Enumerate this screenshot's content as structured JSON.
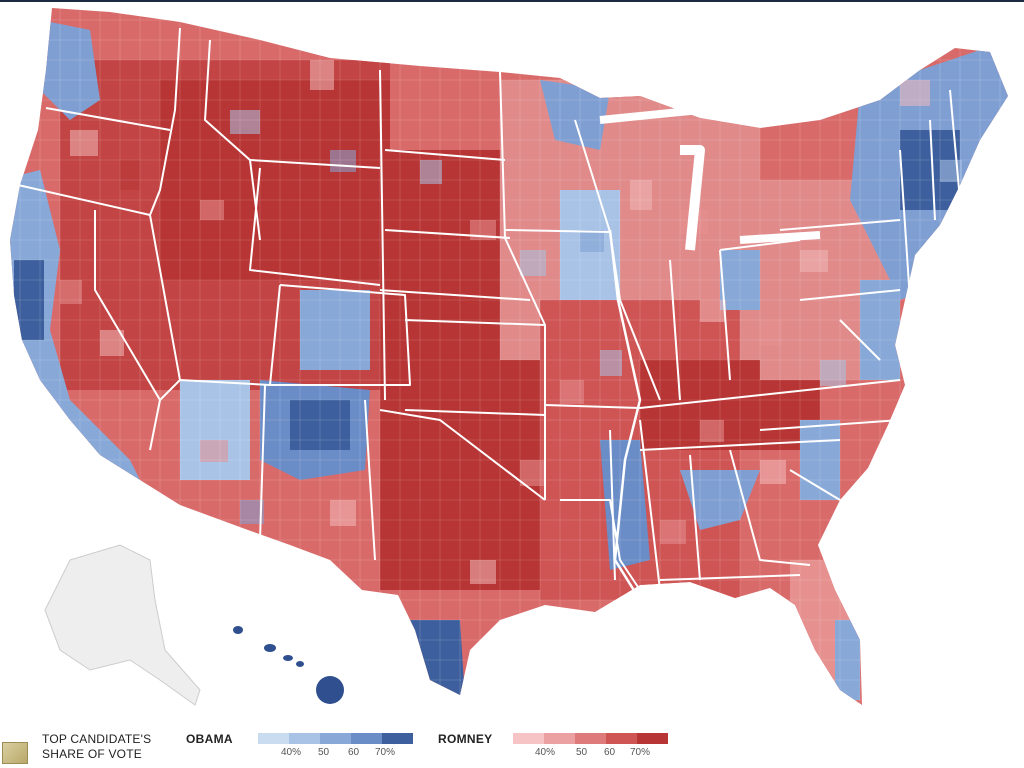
{
  "legend": {
    "title_line1": "TOP CANDIDATE'S",
    "title_line2": "SHARE OF VOTE",
    "obama": {
      "label": "OBAMA",
      "colors": [
        "#c9dcf0",
        "#a9c3e6",
        "#88a8d8",
        "#6a8cc7",
        "#3e5f9e"
      ],
      "ticks": [
        "40%",
        "50",
        "60",
        "70%"
      ]
    },
    "romney": {
      "label": "ROMNEY",
      "colors": [
        "#f6c4c4",
        "#eba1a1",
        "#de7a7a",
        "#cf5555",
        "#b83535"
      ],
      "ticks": [
        "40%",
        "50",
        "60",
        "70%"
      ]
    }
  },
  "map": {
    "colors": {
      "red_dark": "#b83535",
      "red_mid": "#d45858",
      "red_light": "#e69090",
      "pink": "#f2b8b8",
      "blue_light": "#a9c3e6",
      "blue_mid": "#7f9fd3",
      "blue_dark": "#3e5f9e",
      "alaska": "#eeeeee",
      "state_border": "#ffffff"
    },
    "icons": [
      "alaska-outline",
      "hawaii-islands",
      "thumbnail-icon"
    ]
  }
}
